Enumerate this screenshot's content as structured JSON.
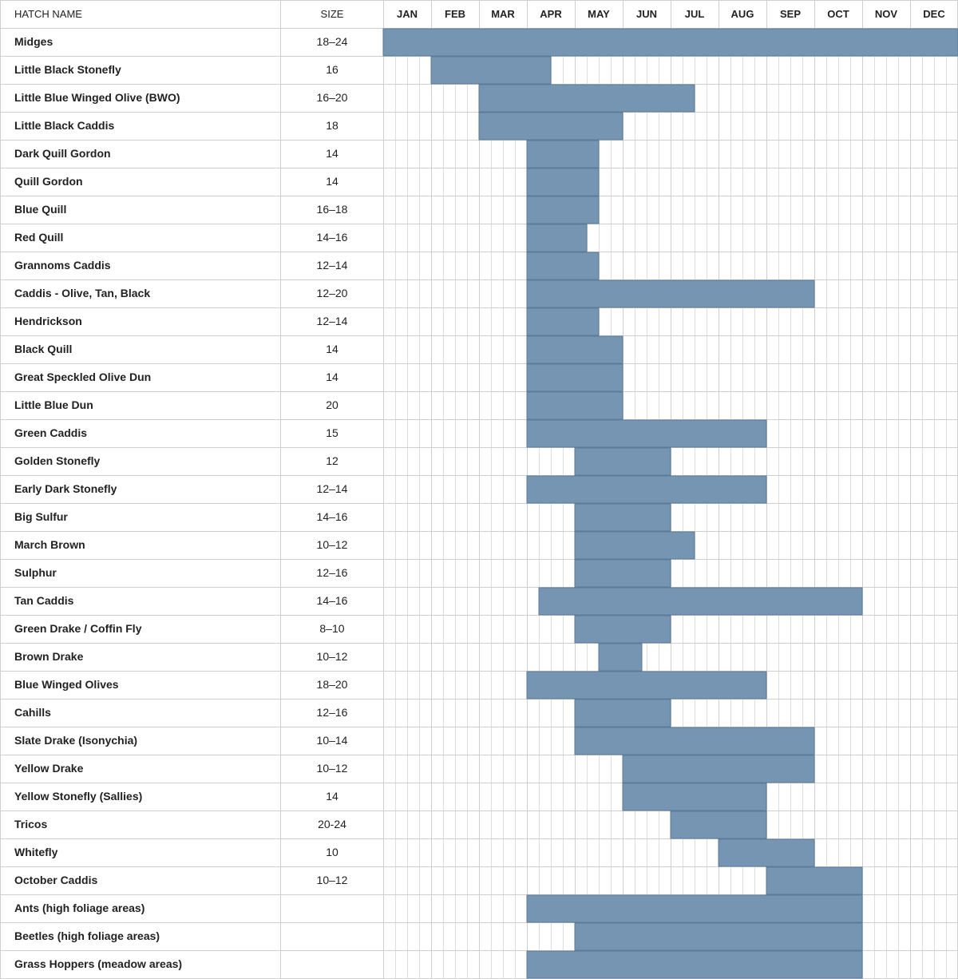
{
  "headers": {
    "name": "HATCH NAME",
    "size": "SIZE"
  },
  "colors": {
    "bar": "#7595b3",
    "grid_major": "#cfcfcf",
    "grid_minor": "#dedede"
  },
  "chart_data": {
    "type": "table",
    "months": [
      "JAN",
      "FEB",
      "MAR",
      "APR",
      "MAY",
      "JUN",
      "JUL",
      "AUG",
      "SEP",
      "OCT",
      "NOV",
      "DEC"
    ],
    "subdivisions_per_month": 4,
    "range_units": "month index, 0 = start of January, 12 = end of December",
    "rows": [
      {
        "name": "Midges",
        "size": "18–24",
        "start": 0,
        "end": 12
      },
      {
        "name": "Little Black Stonefly",
        "size": "16",
        "start": 1,
        "end": 3.5
      },
      {
        "name": "Little Blue Winged Olive (BWO)",
        "size": "16–20",
        "start": 2,
        "end": 6.5
      },
      {
        "name": "Little Black Caddis",
        "size": "18",
        "start": 2,
        "end": 5
      },
      {
        "name": "Dark Quill Gordon",
        "size": "14",
        "start": 3,
        "end": 4.5
      },
      {
        "name": "Quill Gordon",
        "size": "14",
        "start": 3,
        "end": 4.5
      },
      {
        "name": "Blue Quill",
        "size": "16–18",
        "start": 3,
        "end": 4.5
      },
      {
        "name": "Red Quill",
        "size": "14–16",
        "start": 3,
        "end": 4.25
      },
      {
        "name": "Grannoms Caddis",
        "size": "12–14",
        "start": 3,
        "end": 4.5
      },
      {
        "name": "Caddis - Olive, Tan, Black",
        "size": "12–20",
        "start": 3,
        "end": 9
      },
      {
        "name": "Hendrickson",
        "size": "12–14",
        "start": 3,
        "end": 4.5
      },
      {
        "name": "Black Quill",
        "size": "14",
        "start": 3,
        "end": 5
      },
      {
        "name": "Great Speckled Olive Dun",
        "size": "14",
        "start": 3,
        "end": 5
      },
      {
        "name": "Little Blue Dun",
        "size": "20",
        "start": 3,
        "end": 5
      },
      {
        "name": "Green Caddis",
        "size": "15",
        "start": 3,
        "end": 8
      },
      {
        "name": "Golden Stonefly",
        "size": "12",
        "start": 4,
        "end": 6
      },
      {
        "name": "Early Dark Stonefly",
        "size": "12–14",
        "start": 3,
        "end": 8
      },
      {
        "name": "Big Sulfur",
        "size": "14–16",
        "start": 4,
        "end": 6
      },
      {
        "name": "March Brown",
        "size": "10–12",
        "start": 4,
        "end": 6.5
      },
      {
        "name": "Sulphur",
        "size": "12–16",
        "start": 4,
        "end": 6
      },
      {
        "name": "Tan Caddis",
        "size": "14–16",
        "start": 3.25,
        "end": 10
      },
      {
        "name": "Green Drake / Coffin Fly",
        "size": "8–10",
        "start": 4,
        "end": 6
      },
      {
        "name": "Brown Drake",
        "size": "10–12",
        "start": 4.5,
        "end": 5.4
      },
      {
        "name": "Blue Winged Olives",
        "size": "18–20",
        "start": 3,
        "end": 8
      },
      {
        "name": "Cahills",
        "size": "12–16",
        "start": 4,
        "end": 6
      },
      {
        "name": "Slate Drake (Isonychia)",
        "size": "10–14",
        "start": 4,
        "end": 9
      },
      {
        "name": "Yellow Drake",
        "size": "10–12",
        "start": 5,
        "end": 9
      },
      {
        "name": "Yellow Stonefly (Sallies)",
        "size": "14",
        "start": 5,
        "end": 8
      },
      {
        "name": "Tricos",
        "size": "20-24",
        "start": 6,
        "end": 8
      },
      {
        "name": "Whitefly",
        "size": "10",
        "start": 7,
        "end": 9
      },
      {
        "name": "October Caddis",
        "size": "10–12",
        "start": 8,
        "end": 10
      },
      {
        "name": "Ants (high foliage areas)",
        "size": "",
        "start": 3,
        "end": 10
      },
      {
        "name": "Beetles (high foliage areas)",
        "size": "",
        "start": 4,
        "end": 10
      },
      {
        "name": "Grass Hoppers (meadow areas)",
        "size": "",
        "start": 3,
        "end": 10
      }
    ]
  }
}
